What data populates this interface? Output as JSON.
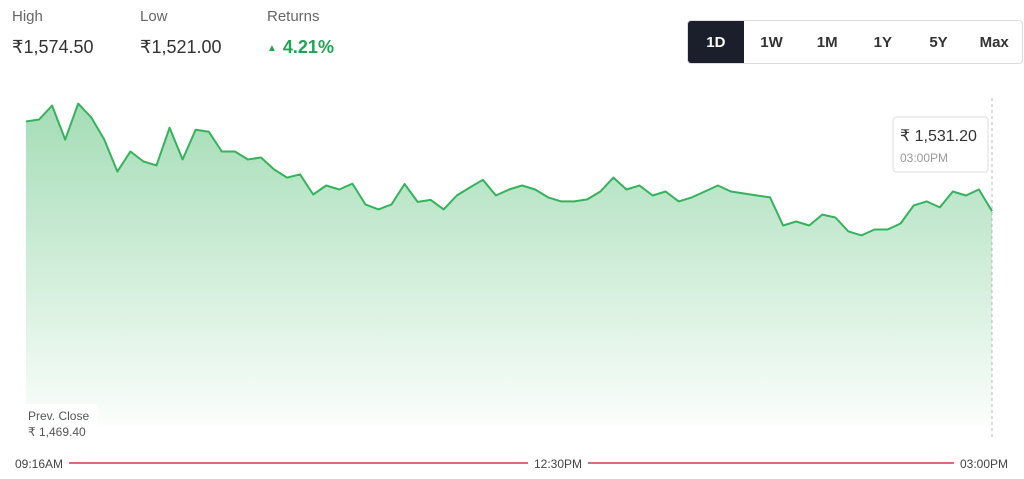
{
  "header": {
    "stats": [
      {
        "label": "High",
        "value": "₹1,574.50"
      },
      {
        "label": "Low",
        "value": "₹1,521.00"
      },
      {
        "label": "Returns",
        "value": "4.21%"
      }
    ]
  },
  "range_buttons": [
    "1D",
    "1W",
    "1M",
    "1Y",
    "5Y",
    "Max"
  ],
  "selected_range": "1D",
  "chart_data": {
    "type": "line",
    "color": "#35b35c",
    "values": [
      1567.3,
      1568.1,
      1573.7,
      1560.0,
      1574.5,
      1568.9,
      1560.0,
      1547.1,
      1555.2,
      1551.2,
      1549.6,
      1564.8,
      1552.0,
      1564.0,
      1563.2,
      1555.2,
      1555.2,
      1552.0,
      1552.8,
      1548.0,
      1544.7,
      1546.0,
      1537.9,
      1541.5,
      1539.9,
      1542.3,
      1533.9,
      1531.9,
      1533.9,
      1542.1,
      1534.9,
      1535.7,
      1531.9,
      1537.5,
      1540.7,
      1543.8,
      1537.5,
      1539.9,
      1541.5,
      1539.9,
      1536.7,
      1535.1,
      1535.1,
      1535.9,
      1539.1,
      1544.7,
      1539.9,
      1541.5,
      1537.5,
      1539.1,
      1535.1,
      1536.7,
      1539.1,
      1541.5,
      1539.1,
      1538.3,
      1537.5,
      1536.7,
      1525.4,
      1527.0,
      1525.4,
      1529.8,
      1528.6,
      1523.0,
      1521.4,
      1523.8,
      1523.8,
      1526.2,
      1533.5,
      1535.1,
      1532.7,
      1539.1,
      1537.5,
      1539.9,
      1531.2
    ],
    "ylim": [
      1445,
      1580
    ],
    "x_labels": [
      "09:16AM",
      "12:30PM",
      "03:00PM"
    ],
    "tooltip": {
      "price": "₹ 1,531.20",
      "time": "03:00PM"
    },
    "prev_close": {
      "label": "Prev. Close",
      "value": "₹ 1,469.40"
    }
  }
}
